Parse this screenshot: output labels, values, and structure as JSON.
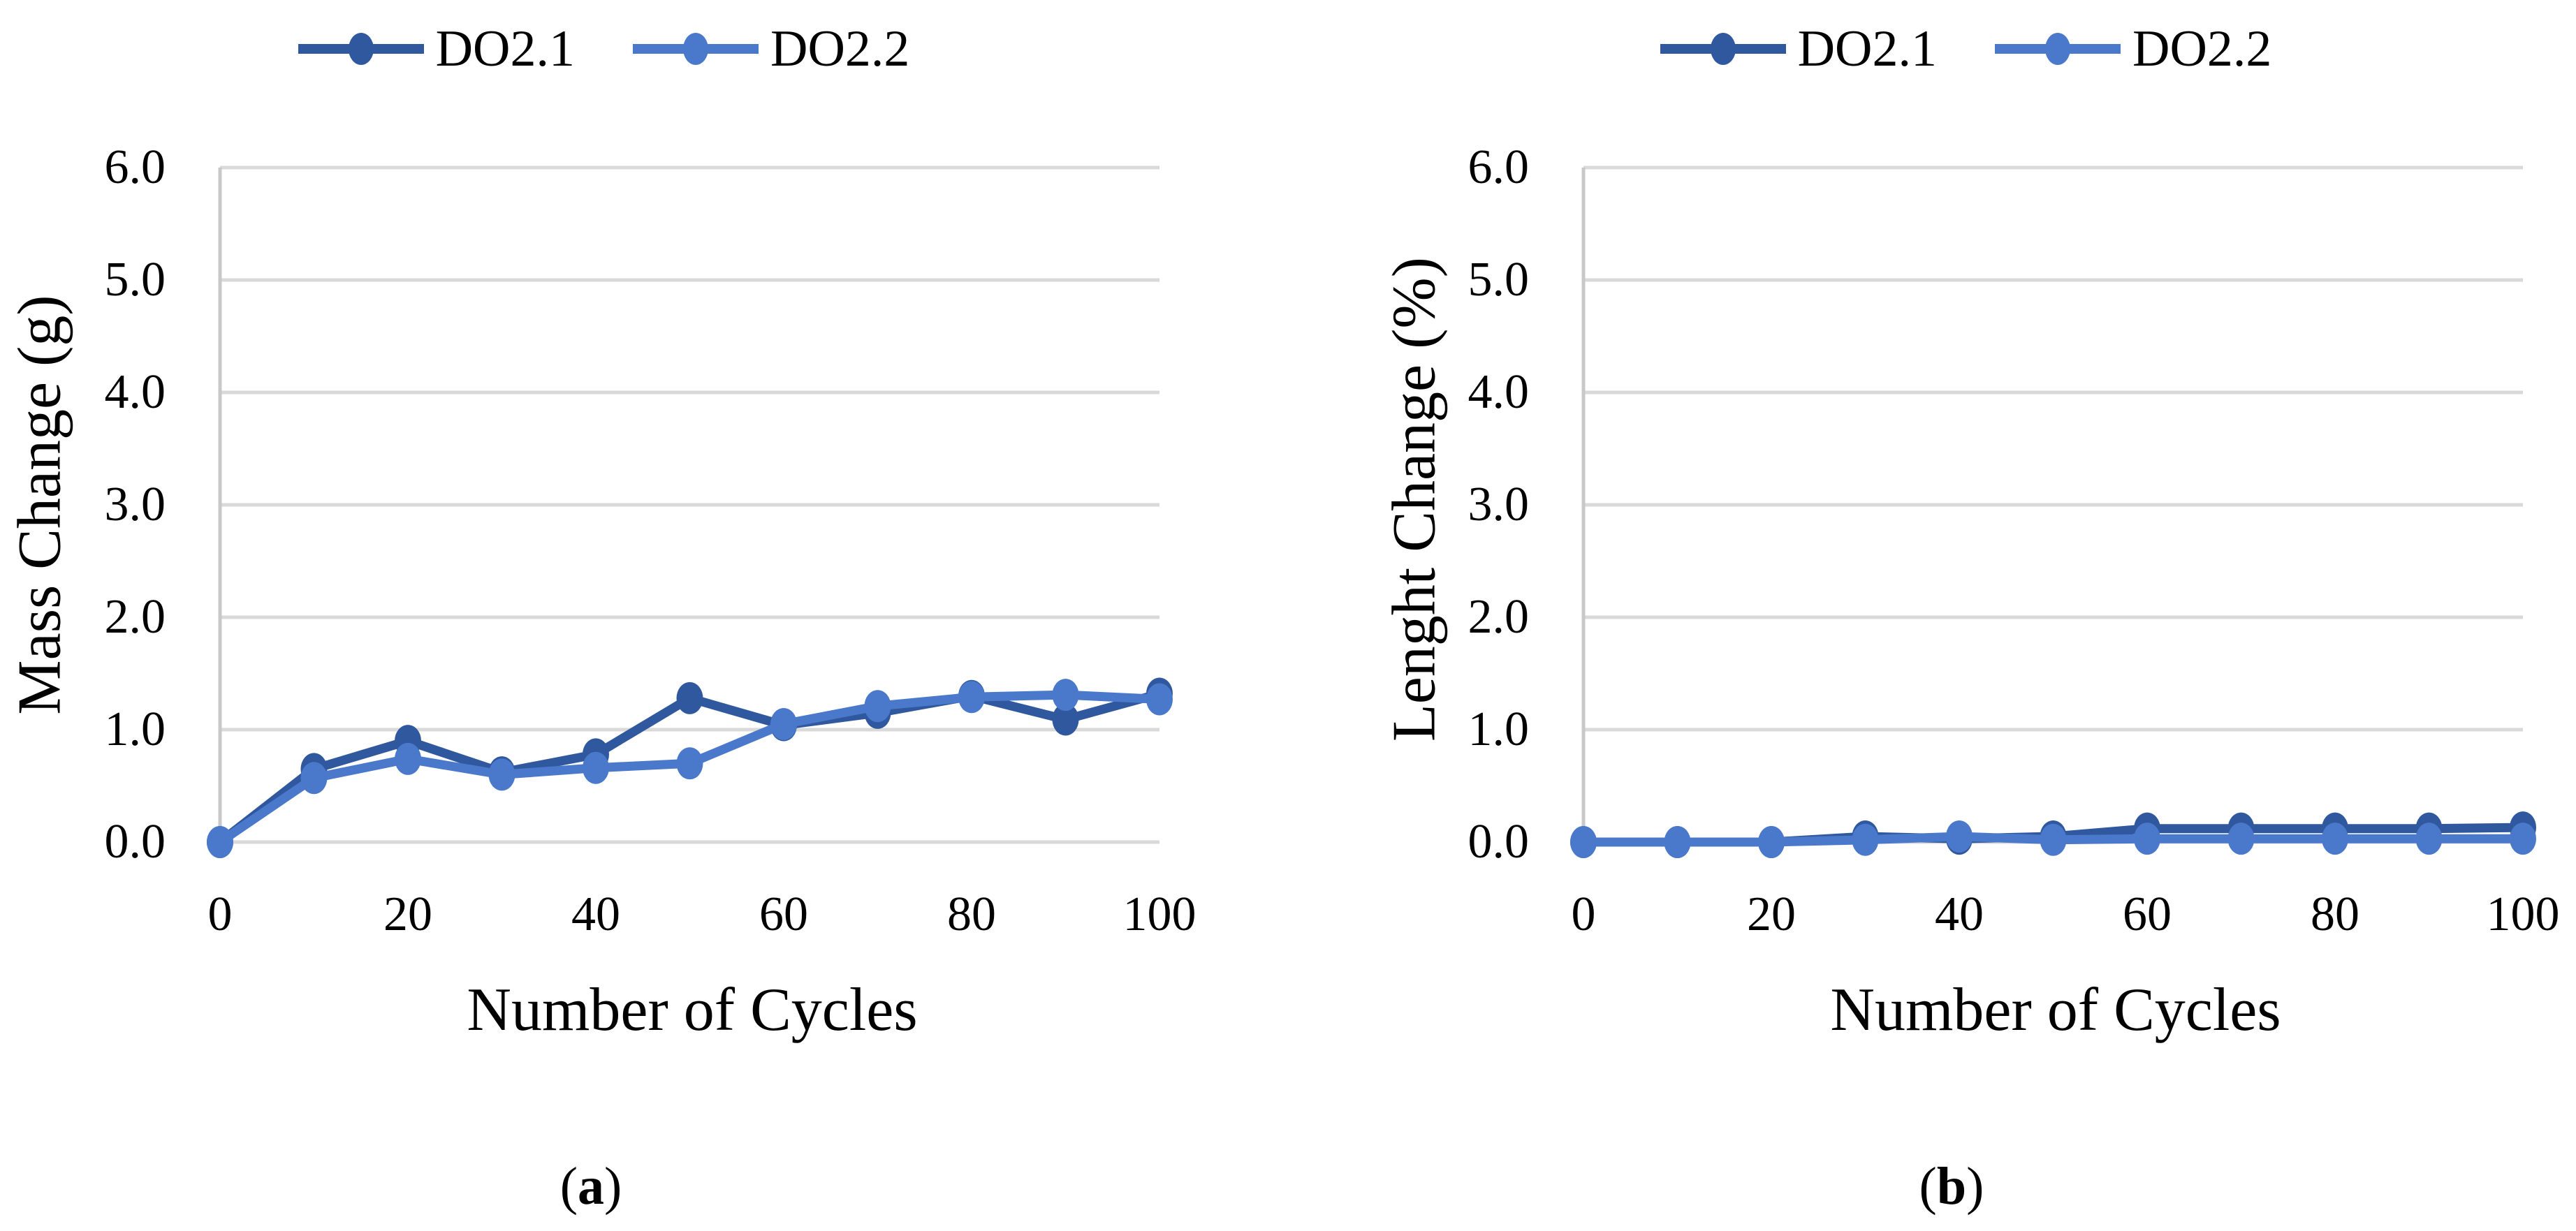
{
  "figure": {
    "background": "#ffffff",
    "colors": {
      "series1": "#30589E",
      "series2": "#4A79CC",
      "gridline": "#D9D9D9",
      "axis_line": "#C8C8C8",
      "text": "#000000"
    },
    "captions": {
      "a": {
        "open": "(",
        "letter": "a",
        "close": ")"
      },
      "b": {
        "open": "(",
        "letter": "b",
        "close": ")"
      }
    }
  },
  "chart_data": [
    {
      "type": "line",
      "title": "",
      "xlabel": "Number of Cycles",
      "ylabel": "Mass Change (g)",
      "xlim": [
        0,
        100
      ],
      "ylim": [
        0,
        6
      ],
      "grid": "horizontal",
      "legend_position": "top",
      "x": [
        0,
        10,
        20,
        30,
        40,
        50,
        60,
        70,
        80,
        90,
        100
      ],
      "xticks": [
        "0",
        "20",
        "40",
        "60",
        "80",
        "100"
      ],
      "xtick_values": [
        0,
        20,
        40,
        60,
        80,
        100
      ],
      "yticks": [
        "0.0",
        "1.0",
        "2.0",
        "3.0",
        "4.0",
        "5.0",
        "6.0"
      ],
      "ytick_values": [
        0,
        1,
        2,
        3,
        4,
        5,
        6
      ],
      "series": [
        {
          "name": "DO2.1",
          "color": "#30589E",
          "values": [
            0.0,
            0.65,
            0.9,
            0.62,
            0.78,
            1.28,
            1.04,
            1.15,
            1.3,
            1.09,
            1.32
          ]
        },
        {
          "name": "DO2.2",
          "color": "#4A79CC",
          "values": [
            0.0,
            0.57,
            0.74,
            0.6,
            0.66,
            0.7,
            1.05,
            1.21,
            1.29,
            1.31,
            1.27
          ]
        }
      ]
    },
    {
      "type": "line",
      "title": "",
      "xlabel": "Number of Cycles",
      "ylabel": "Lenght Change (%)",
      "xlim": [
        0,
        100
      ],
      "ylim": [
        0,
        6
      ],
      "grid": "horizontal",
      "legend_position": "top",
      "x": [
        0,
        10,
        20,
        30,
        40,
        50,
        60,
        70,
        80,
        90,
        100
      ],
      "xticks": [
        "0",
        "20",
        "40",
        "60",
        "80",
        "100"
      ],
      "xtick_values": [
        0,
        20,
        40,
        60,
        80,
        100
      ],
      "yticks": [
        "0.0",
        "1.0",
        "2.0",
        "3.0",
        "4.0",
        "5.0",
        "6.0"
      ],
      "ytick_values": [
        0,
        1,
        2,
        3,
        4,
        5,
        6
      ],
      "series": [
        {
          "name": "DO2.1",
          "color": "#30589E",
          "values": [
            0.0,
            0.0,
            0.0,
            0.05,
            0.03,
            0.05,
            0.12,
            0.12,
            0.12,
            0.12,
            0.13
          ]
        },
        {
          "name": "DO2.2",
          "color": "#4A79CC",
          "values": [
            0.0,
            0.0,
            0.0,
            0.02,
            0.05,
            0.02,
            0.03,
            0.03,
            0.03,
            0.03,
            0.03
          ]
        }
      ]
    }
  ]
}
